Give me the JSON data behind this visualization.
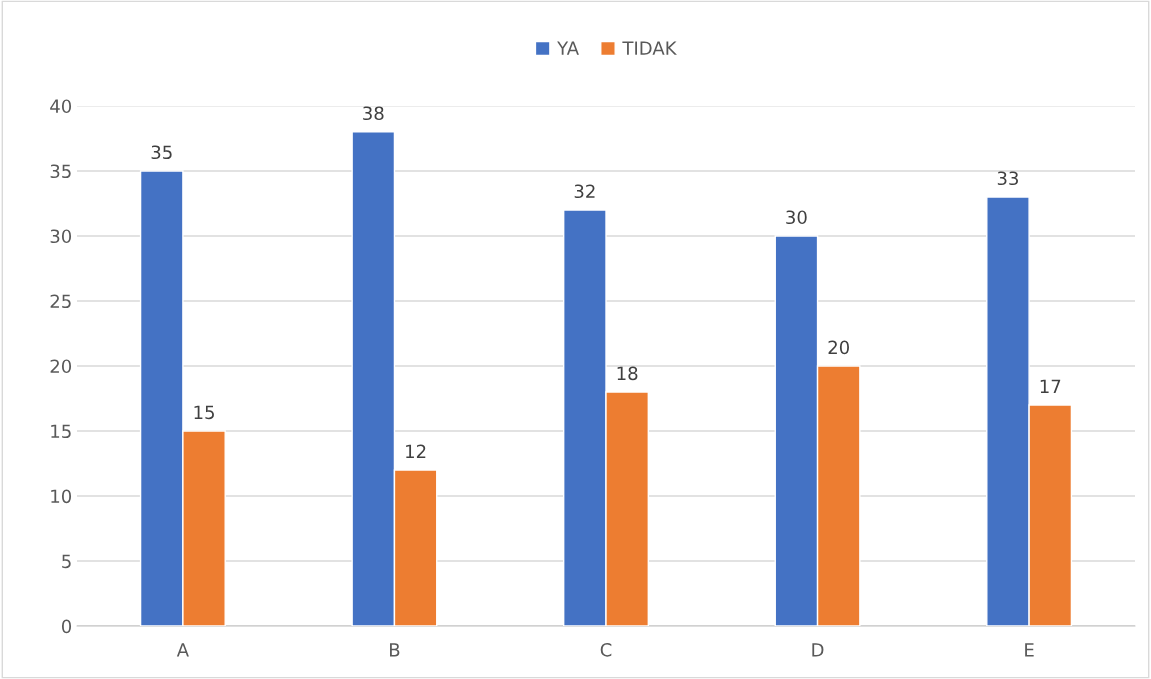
{
  "chart_data": {
    "type": "bar",
    "categories": [
      "A",
      "B",
      "C",
      "D",
      "E"
    ],
    "series": [
      {
        "name": "YA",
        "color": "#4472c4",
        "values": [
          35,
          38,
          32,
          30,
          33
        ]
      },
      {
        "name": "TIDAK",
        "color": "#ed7d31",
        "values": [
          15,
          12,
          18,
          20,
          17
        ]
      }
    ],
    "ylim": [
      0,
      40
    ],
    "yticks": [
      0,
      5,
      10,
      15,
      20,
      25,
      30,
      35,
      40
    ],
    "grid": "y",
    "legend": "top",
    "data_labels": true
  }
}
